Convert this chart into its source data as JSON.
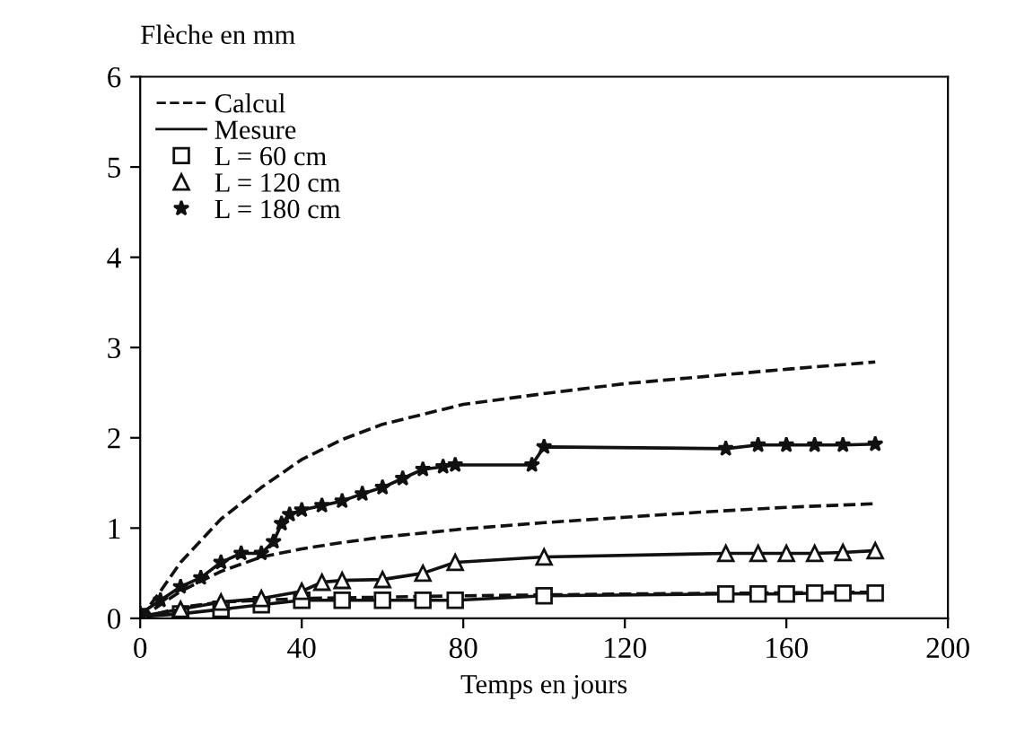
{
  "chart_data": {
    "type": "line",
    "ylabel": "Flèche en mm",
    "xlabel": "Temps en jours",
    "xlim": [
      0,
      200
    ],
    "xticks": [
      0,
      40,
      80,
      120,
      160,
      200
    ],
    "ylim": [
      0,
      6
    ],
    "yticks": [
      0,
      1,
      2,
      3,
      4,
      5,
      6
    ],
    "grid": false,
    "legend": "top left",
    "annotations": [
      "Calcul",
      "Mesure"
    ],
    "series": [
      {
        "color": "#111111",
        "line_style": "dashed",
        "marker": "none",
        "x": [
          0,
          5,
          10,
          20,
          30,
          40,
          50,
          60,
          80,
          100,
          120,
          140,
          160,
          182
        ],
        "values": [
          0,
          0.3,
          0.62,
          1.1,
          1.45,
          1.76,
          1.98,
          2.15,
          2.37,
          2.49,
          2.6,
          2.68,
          2.76,
          2.84
        ]
      },
      {
        "color": "#111111",
        "line_style": "dashed",
        "marker": "none",
        "x": [
          0,
          10,
          20,
          30,
          40,
          50,
          60,
          80,
          100,
          120,
          140,
          160,
          182
        ],
        "values": [
          0,
          0.3,
          0.52,
          0.68,
          0.77,
          0.84,
          0.9,
          0.99,
          1.06,
          1.12,
          1.18,
          1.23,
          1.27
        ]
      },
      {
        "color": "#111111",
        "line_style": "dashed",
        "marker": "none",
        "x": [
          0,
          10,
          20,
          40,
          80,
          120,
          182
        ],
        "values": [
          0,
          0.12,
          0.18,
          0.22,
          0.25,
          0.27,
          0.29
        ]
      },
      {
        "name": "L = 60 cm",
        "color": "#111111",
        "line_style": "solid",
        "marker": "square",
        "x": [
          0,
          10,
          20,
          30,
          40,
          50,
          60,
          70,
          78,
          100,
          145,
          153,
          160,
          167,
          174,
          182
        ],
        "values": [
          0.02,
          0.05,
          0.1,
          0.15,
          0.2,
          0.2,
          0.2,
          0.2,
          0.2,
          0.25,
          0.27,
          0.27,
          0.27,
          0.28,
          0.28,
          0.28
        ]
      },
      {
        "name": "L = 120 cm",
        "color": "#111111",
        "line_style": "solid",
        "marker": "triangle",
        "x": [
          0,
          10,
          20,
          30,
          40,
          45,
          50,
          60,
          70,
          78,
          100,
          145,
          153,
          160,
          167,
          174,
          182
        ],
        "values": [
          0.02,
          0.1,
          0.18,
          0.22,
          0.3,
          0.4,
          0.42,
          0.43,
          0.5,
          0.62,
          0.68,
          0.72,
          0.72,
          0.72,
          0.72,
          0.73,
          0.75
        ]
      },
      {
        "name": "L = 180 cm",
        "color": "#111111",
        "line_style": "solid",
        "marker": "star",
        "x": [
          0,
          5,
          10,
          15,
          20,
          25,
          30,
          33,
          35,
          37,
          40,
          45,
          50,
          55,
          60,
          65,
          70,
          75,
          78,
          97,
          100,
          145,
          153,
          160,
          167,
          174,
          182
        ],
        "values": [
          0.05,
          0.2,
          0.35,
          0.45,
          0.62,
          0.72,
          0.72,
          0.85,
          1.05,
          1.15,
          1.2,
          1.25,
          1.3,
          1.38,
          1.45,
          1.55,
          1.65,
          1.68,
          1.7,
          1.7,
          1.9,
          1.88,
          1.92,
          1.92,
          1.92,
          1.92,
          1.93
        ]
      }
    ]
  }
}
